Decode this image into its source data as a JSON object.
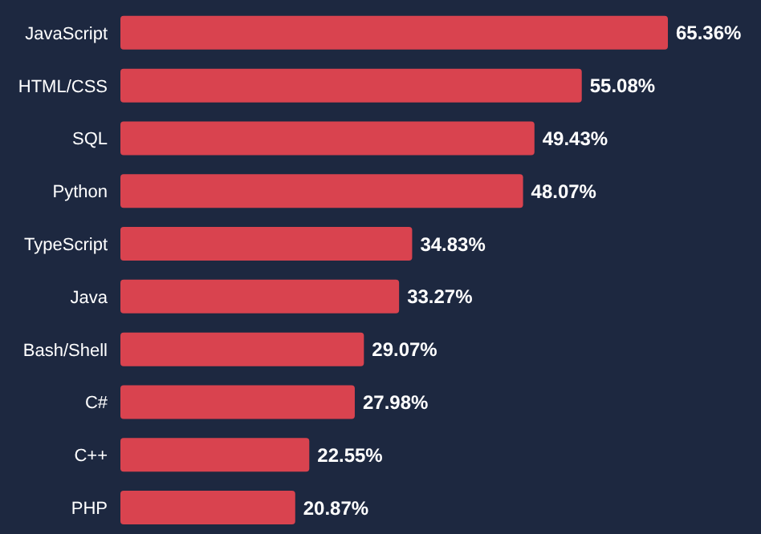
{
  "chart_data": {
    "type": "bar",
    "orientation": "horizontal",
    "categories": [
      "JavaScript",
      "HTML/CSS",
      "SQL",
      "Python",
      "TypeScript",
      "Java",
      "Bash/Shell",
      "C#",
      "C++",
      "PHP"
    ],
    "values": [
      65.36,
      55.08,
      49.43,
      48.07,
      34.83,
      33.27,
      29.07,
      27.98,
      22.55,
      20.87
    ],
    "value_labels": [
      "65.36%",
      "55.08%",
      "49.43%",
      "48.07%",
      "34.83%",
      "33.27%",
      "29.07%",
      "27.98%",
      "22.55%",
      "20.87%"
    ],
    "color": "#d9434f",
    "legend": false,
    "grid": false
  }
}
